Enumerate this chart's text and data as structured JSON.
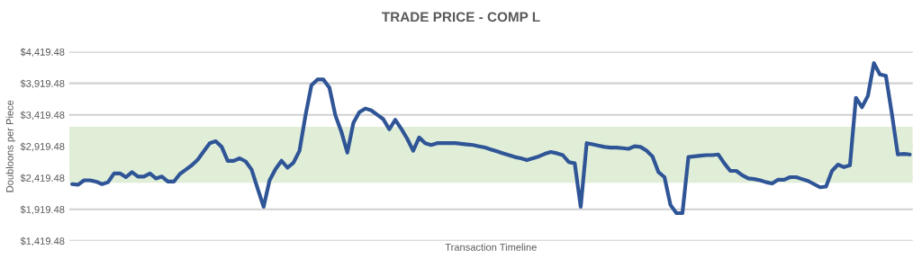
{
  "chart_data": {
    "type": "line",
    "title": "TRADE PRICE - COMP L",
    "xlabel": "Transaction Timeline",
    "ylabel": "Doubloons per Piece",
    "categories": [
      null,
      null,
      null,
      null,
      null,
      null,
      null,
      null,
      null,
      null,
      null,
      null,
      null,
      null,
      null,
      null,
      null,
      null,
      null,
      null,
      null,
      null,
      null,
      null,
      null,
      null,
      null,
      null,
      null,
      null,
      null,
      null,
      null,
      null,
      null,
      null,
      null,
      null,
      null,
      null,
      null,
      null,
      null,
      null,
      null,
      null,
      null,
      null,
      null,
      null,
      null,
      null,
      null,
      null,
      null,
      null,
      null,
      null,
      null,
      null,
      null,
      null,
      null,
      null,
      null,
      null,
      null,
      null,
      null,
      null,
      null,
      null,
      null,
      null,
      null,
      null,
      null,
      null,
      null,
      null,
      null,
      null,
      null,
      null,
      null,
      null,
      null,
      null,
      null,
      null,
      null,
      null,
      null,
      null,
      null,
      null,
      null,
      null,
      null,
      null,
      null,
      null,
      null,
      null,
      null,
      null,
      null,
      null,
      null,
      null,
      null,
      null,
      null,
      null,
      null,
      null,
      null,
      null,
      null,
      null,
      null,
      null,
      null,
      null,
      null,
      null,
      null,
      null,
      null,
      null,
      null,
      null,
      null,
      null,
      null,
      null,
      null,
      null,
      null,
      null,
      null
    ],
    "series": [
      {
        "color": "#2f5597",
        "values": [
          2320,
          2310,
          2380,
          2380,
          2360,
          2320,
          2350,
          2490,
          2490,
          2430,
          2510,
          2440,
          2440,
          2490,
          2410,
          2440,
          2360,
          2360,
          2480,
          2550,
          2620,
          2710,
          2840,
          2970,
          3000,
          2910,
          2690,
          2690,
          2730,
          2680,
          2550,
          2250,
          1960,
          2380,
          2560,
          2690,
          2580,
          2660,
          2850,
          3410,
          3890,
          3980,
          3980,
          3850,
          3410,
          3150,
          2820,
          3290,
          3460,
          3520,
          3490,
          3420,
          3350,
          3190,
          3340,
          3200,
          3040,
          2850,
          3060,
          2970,
          2940,
          2970,
          2970,
          2970,
          2970,
          2960,
          2950,
          2940,
          2920,
          2900,
          2870,
          2840,
          2810,
          2780,
          2750,
          2730,
          2700,
          2730,
          2760,
          2800,
          2830,
          2810,
          2780,
          2670,
          2650,
          1960,
          2970,
          2950,
          2930,
          2910,
          2900,
          2900,
          2890,
          2880,
          2920,
          2910,
          2850,
          2760,
          2510,
          2430,
          1990,
          1860,
          1860,
          2750,
          2760,
          2770,
          2780,
          2780,
          2790,
          2650,
          2530,
          2530,
          2460,
          2410,
          2400,
          2380,
          2350,
          2330,
          2390,
          2390,
          2430,
          2430,
          2400,
          2370,
          2320,
          2270,
          2280,
          2530,
          2630,
          2590,
          2620,
          3690,
          3540,
          3720,
          4240,
          4060,
          4040,
          3440,
          2790,
          2800,
          2790
        ]
      }
    ],
    "ylim": [
      1419.48,
      4419.48
    ],
    "yticks": [
      {
        "value": 1419.48,
        "label": "$1,419.48"
      },
      {
        "value": 1919.48,
        "label": "$1,919.48"
      },
      {
        "value": 2419.48,
        "label": "$2,419.48"
      },
      {
        "value": 2919.48,
        "label": "$2,919.48"
      },
      {
        "value": 3419.48,
        "label": "$3,419.48"
      },
      {
        "value": 3919.48,
        "label": "$3,919.48"
      },
      {
        "value": 4419.48,
        "label": "$4,419.48"
      }
    ],
    "bands": [
      {
        "axis": "y",
        "from": 2340,
        "to": 3230,
        "color": "#e0eed8"
      }
    ],
    "grid": "y",
    "tick_labels": "y",
    "legend": false,
    "marker": "none",
    "line_style": "solid"
  }
}
